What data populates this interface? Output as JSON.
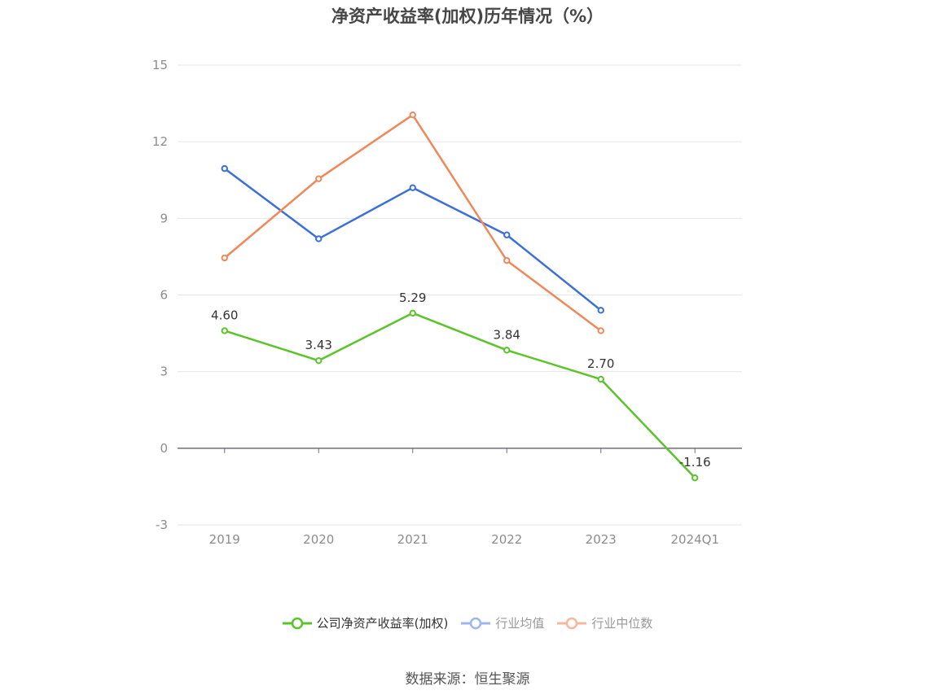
{
  "chart_data": {
    "type": "line",
    "title": "净资产收益率(加权)历年情况（%）",
    "categories": [
      "2019",
      "2020",
      "2021",
      "2022",
      "2023",
      "2024Q1"
    ],
    "ylim": [
      -3,
      15
    ],
    "yticks": [
      -3,
      0,
      3,
      6,
      9,
      12,
      15
    ],
    "grid": true,
    "legend_position": "bottom",
    "series": [
      {
        "name": "公司净资产收益率(加权)",
        "color": "#5bc42b",
        "values": [
          4.6,
          3.43,
          5.29,
          3.84,
          2.7,
          -1.16
        ],
        "data_labels": [
          "4.60",
          "3.43",
          "5.29",
          "3.84",
          "2.70",
          "-1.16"
        ]
      },
      {
        "name": "行业均值",
        "color": "#3b6fd9",
        "values": [
          10.95,
          8.2,
          10.2,
          8.35,
          5.4,
          null
        ]
      },
      {
        "name": "行业中位数",
        "color": "#f0885a",
        "values": [
          7.45,
          10.55,
          13.05,
          7.35,
          4.6,
          null
        ]
      }
    ]
  },
  "legend_colors": [
    "#5bc42b",
    "#9cb8ec",
    "#f6b89b"
  ],
  "legend_text_colors": [
    "#333333",
    "#999999",
    "#999999"
  ],
  "source_text": "数据来源：恒生聚源"
}
